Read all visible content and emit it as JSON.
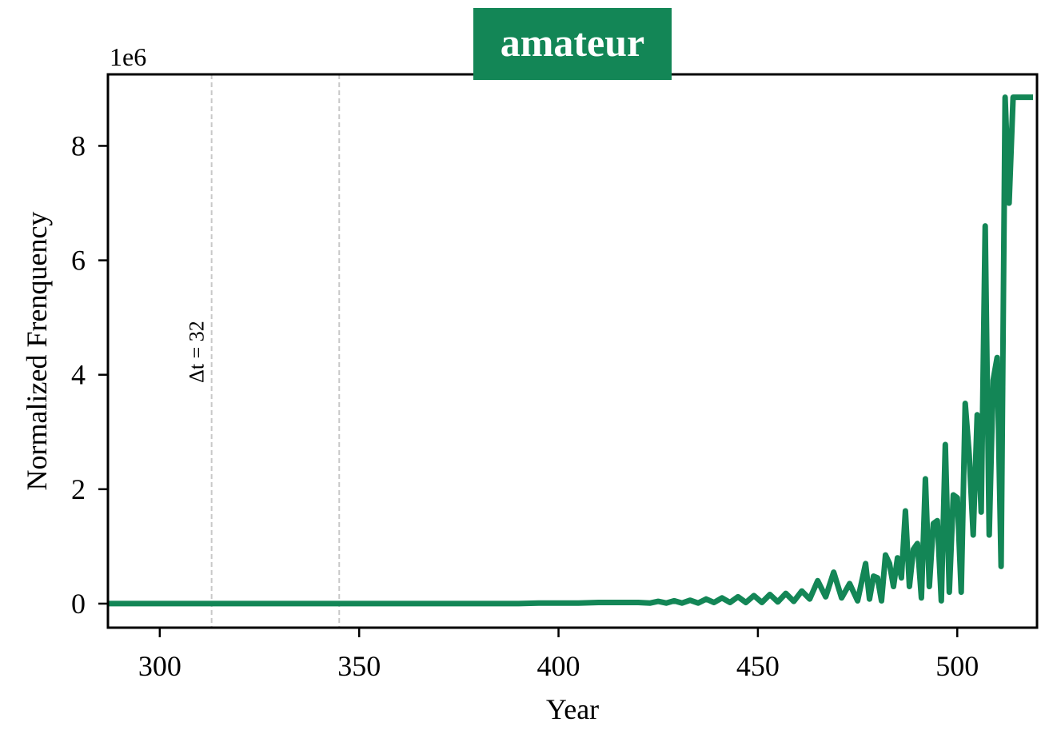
{
  "chart_data": {
    "type": "line",
    "title": "amateur",
    "xlabel": "Year",
    "ylabel": "Normalized Frenquency",
    "y_multiplier_label": "1e6",
    "xlim": [
      287,
      520
    ],
    "ylim": [
      -0.42,
      9.25
    ],
    "x_ticks": [
      300,
      350,
      400,
      450,
      500
    ],
    "y_ticks": [
      0,
      2,
      4,
      6,
      8
    ],
    "grid": false,
    "colors": {
      "line": "#138656",
      "title_box": "#138656",
      "vline": "#c8c8c8"
    },
    "vlines": [
      313,
      345
    ],
    "annotation": {
      "text": "Δt = 32",
      "x": 313,
      "y": 4.4
    },
    "series": [
      {
        "x": [
          287,
          390,
          395,
          400,
          405,
          410,
          415,
          420,
          423,
          425,
          427,
          429,
          431,
          433,
          435,
          437,
          439,
          441,
          443,
          445,
          447,
          449,
          451,
          453,
          455,
          457,
          459,
          461,
          463,
          465,
          467,
          469,
          471,
          473,
          475,
          477,
          478,
          479,
          480,
          481,
          482,
          483,
          484,
          485,
          486,
          487,
          488,
          489,
          490,
          491,
          492,
          493,
          494,
          495,
          496,
          497,
          498,
          499,
          500,
          501,
          502,
          503,
          504,
          505,
          506,
          507,
          508,
          509,
          510,
          511,
          512,
          513,
          514,
          515,
          516,
          517,
          518,
          519
        ],
        "y": [
          0,
          0,
          0.01,
          0.01,
          0.01,
          0.02,
          0.02,
          0.02,
          0.01,
          0.04,
          0.01,
          0.05,
          0.01,
          0.06,
          0.01,
          0.08,
          0.02,
          0.1,
          0.02,
          0.12,
          0.02,
          0.14,
          0.02,
          0.16,
          0.03,
          0.18,
          0.04,
          0.22,
          0.08,
          0.4,
          0.12,
          0.55,
          0.1,
          0.35,
          0.05,
          0.7,
          0.08,
          0.48,
          0.45,
          0.05,
          0.85,
          0.7,
          0.3,
          0.8,
          0.45,
          1.62,
          0.3,
          0.95,
          1.05,
          0.1,
          2.18,
          0.3,
          1.4,
          1.45,
          0.05,
          2.78,
          0.2,
          1.9,
          1.85,
          0.2,
          3.5,
          2.6,
          1.2,
          3.3,
          1.6,
          6.6,
          1.2,
          3.9,
          4.3,
          0.65,
          8.85,
          7.0,
          8.85,
          8.85,
          8.85,
          8.85,
          8.85,
          8.85
        ]
      }
    ]
  }
}
